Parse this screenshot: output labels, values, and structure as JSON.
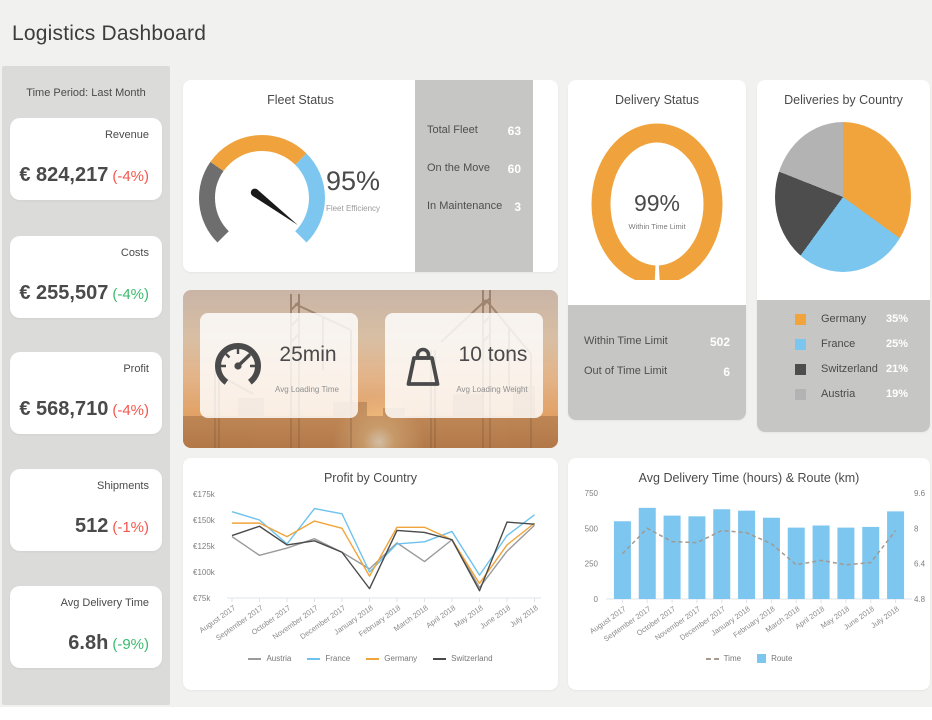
{
  "title": "Logistics Dashboard",
  "colors": {
    "orange": "#F0A33C",
    "blue": "#7CC6EF",
    "dark_gray": "#4D4D4D",
    "light_gray": "#B3B3B3",
    "panel_gray": "#C6C6C5",
    "sidebar_gray": "#DBDBDA",
    "red": "#F2574D",
    "green": "#3CBA6E"
  },
  "sidebar": {
    "time_period": "Time Period: Last Month",
    "kpis": [
      {
        "label": "Revenue",
        "value": "€ 824,217",
        "change": "(-4%)",
        "change_color": "#F2574D"
      },
      {
        "label": "Costs",
        "value": "€ 255,507",
        "change": "(-4%)",
        "change_color": "#3CBA6E"
      },
      {
        "label": "Profit",
        "value": "€ 568,710",
        "change": "(-4%)",
        "change_color": "#F2574D"
      },
      {
        "label": "Shipments",
        "value": "512",
        "change": "(-1%)",
        "change_color": "#F2574D"
      },
      {
        "label": "Avg Delivery Time",
        "value": "6.8h",
        "change": "(-9%)",
        "change_color": "#3CBA6E"
      }
    ]
  },
  "fleet_status": {
    "title": "Fleet Status",
    "gauge_value": "95%",
    "gauge_label": "Fleet Efficiency",
    "gauge_percent": 95,
    "gauge_segments": [
      {
        "color": "#6E6E6E",
        "from": -135,
        "to": -55
      },
      {
        "color": "#F0A33C",
        "from": -55,
        "to": 45
      },
      {
        "color": "#7CC6EF",
        "from": 45,
        "to": 135
      }
    ],
    "needle_angle": 127,
    "stats": [
      {
        "label": "Total Fleet",
        "value": "63"
      },
      {
        "label": "On the Move",
        "value": "60"
      },
      {
        "label": "In Maintenance",
        "value": "3"
      }
    ]
  },
  "loading": {
    "items": [
      {
        "icon": "speedometer-icon",
        "value": "25min",
        "label": "Avg Loading Time"
      },
      {
        "icon": "weight-icon",
        "value": "10 tons",
        "label": "Avg Loading Weight"
      }
    ]
  },
  "delivery_status": {
    "title": "Delivery Status",
    "donut_value": "99%",
    "donut_label": "Within Time Limit",
    "donut_percent": 99,
    "donut_color": "#F0A33C",
    "stats": [
      {
        "label": "Within Time Limit",
        "value": "502"
      },
      {
        "label": "Out of Time Limit",
        "value": "6"
      }
    ]
  },
  "deliveries_by_country": {
    "title": "Deliveries by Country",
    "slices": [
      {
        "label": "Germany",
        "pct_label": "35%",
        "percent": 35,
        "color": "#F1A43B"
      },
      {
        "label": "France",
        "pct_label": "25%",
        "percent": 25,
        "color": "#7AC6EF"
      },
      {
        "label": "Switzerland",
        "pct_label": "21%",
        "percent": 21,
        "color": "#4D4D4D"
      },
      {
        "label": "Austria",
        "pct_label": "19%",
        "percent": 19,
        "color": "#B3B3B3"
      }
    ]
  },
  "chart_data": [
    {
      "type": "line",
      "title": "Profit by Country",
      "categories": [
        "August 2017",
        "September 2017",
        "October 2017",
        "November 2017",
        "December 2017",
        "January 2018",
        "February 2018",
        "March 2018",
        "April 2018",
        "May 2018",
        "June 2018",
        "July 2018"
      ],
      "series": [
        {
          "name": "Austria",
          "color": "#9B9B9B",
          "values": [
            134,
            116,
            123,
            132,
            119,
            103,
            128,
            110,
            131,
            85,
            120,
            145
          ]
        },
        {
          "name": "France",
          "color": "#6EC2EE",
          "values": [
            158,
            150,
            127,
            161,
            156,
            100,
            127,
            129,
            139,
            97,
            135,
            155
          ]
        },
        {
          "name": "Germany",
          "color": "#F1A43B",
          "values": [
            147,
            147,
            134,
            149,
            142,
            96,
            143,
            143,
            131,
            89,
            126,
            147
          ]
        },
        {
          "name": "Switzerland",
          "color": "#4A4A4A",
          "values": [
            135,
            144,
            126,
            130,
            119,
            84,
            140,
            138,
            131,
            82,
            148,
            146
          ]
        }
      ],
      "yticks": [
        75,
        100,
        125,
        150,
        175
      ],
      "ytick_labels": [
        "€75k",
        "€100k",
        "€125k",
        "€150k",
        "€175k"
      ],
      "ylim": [
        75,
        175
      ],
      "grid": false,
      "legend_position": "bottom"
    },
    {
      "type": "bar+line",
      "title": "Avg Delivery Time (hours) & Route (km)",
      "categories": [
        "August 2017",
        "September 2017",
        "October 2017",
        "November 2017",
        "December 2017",
        "January 2018",
        "February 2018",
        "March 2018",
        "April 2018",
        "May 2018",
        "June 2018",
        "July 2018"
      ],
      "bar_series": {
        "name": "Route",
        "color": "#7CC6EF",
        "axis": "left",
        "values": [
          550,
          645,
          590,
          585,
          635,
          625,
          575,
          505,
          520,
          505,
          510,
          620
        ]
      },
      "line_series": {
        "name": "Time",
        "color": "#A3998F",
        "style": "dashed",
        "axis": "right",
        "values": [
          6.85,
          8.0,
          7.4,
          7.35,
          7.9,
          7.8,
          7.3,
          6.35,
          6.55,
          6.35,
          6.45,
          7.9
        ]
      },
      "left_ticks": [
        0,
        250,
        500,
        750
      ],
      "left_ylim": [
        0,
        750
      ],
      "right_ticks": [
        4.8,
        6.4,
        8,
        9.6
      ],
      "right_ylim": [
        4.8,
        9.6
      ],
      "grid": false,
      "legend_position": "bottom"
    }
  ]
}
